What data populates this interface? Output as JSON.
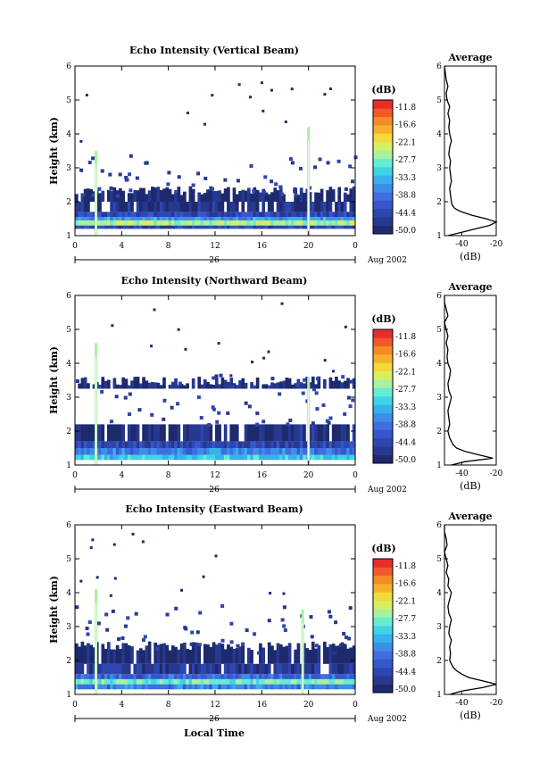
{
  "colorbar": {
    "unit": "(dB)",
    "labels": [
      "-11.8",
      "-16.6",
      "-22.1",
      "-27.7",
      "-33.3",
      "-38.8",
      "-44.4",
      "-50.0"
    ],
    "colors": [
      "#1e2a6e",
      "#27388f",
      "#2e46b0",
      "#3657cc",
      "#3f6ee0",
      "#3e8de8",
      "#38b0ec",
      "#3fd3e8",
      "#66ecd0",
      "#a7f1a0",
      "#d7ee62",
      "#f3d93a",
      "#f6b12c",
      "#f48a28",
      "#ef5a27",
      "#e82c2c"
    ]
  },
  "shared_x": {
    "ticks": [
      "0",
      "4",
      "8",
      "12",
      "16",
      "20",
      "0"
    ],
    "date_day": "26",
    "date_month": "Aug 2002",
    "xlabel": "Local Time"
  },
  "chart_data": [
    {
      "type": "heatmap",
      "title": "Echo Intensity (Vertical Beam)",
      "ylabel": "Height (km)",
      "ylim": [
        1,
        6
      ],
      "xlim": [
        0,
        24
      ],
      "y_ticks": [
        "1",
        "2",
        "3",
        "4",
        "5",
        "6"
      ],
      "value_range_db": [
        -50.0,
        -11.8
      ],
      "layers": [
        {
          "h0": 1.2,
          "h1": 1.3,
          "db": -44
        },
        {
          "h0": 1.3,
          "h1": 1.45,
          "db": -27
        },
        {
          "h0": 1.45,
          "h1": 1.55,
          "db": -36
        },
        {
          "h0": 1.55,
          "h1": 1.7,
          "db": -44
        },
        {
          "h0": 1.7,
          "h1": 2.0,
          "db": -47
        },
        {
          "h0": 2.0,
          "h1": 2.2,
          "db": -49
        }
      ],
      "spikes_h": [
        {
          "h": 1.8,
          "top": 3.5
        },
        {
          "h": 20.0,
          "top": 4.2
        }
      ],
      "average_profile": {
        "title": "Average",
        "xlabel": "(dB)",
        "x_ticks": [
          "-40",
          "-20"
        ],
        "xlim": [
          -50,
          -20
        ],
        "y_ticks": [
          "1",
          "2",
          "3",
          "4",
          "5",
          "6"
        ],
        "heights": [
          1.0,
          1.1,
          1.2,
          1.3,
          1.4,
          1.5,
          1.6,
          1.7,
          1.8,
          1.9,
          2.0,
          2.2,
          2.4,
          2.6,
          2.8,
          3.0,
          3.2,
          3.4,
          3.6,
          3.8,
          4.0,
          4.2,
          4.4,
          4.6,
          4.8,
          5.0,
          5.2,
          5.4,
          5.6,
          5.8,
          6.0
        ],
        "db": [
          -48,
          -40,
          -32,
          -24,
          -20,
          -26,
          -34,
          -40,
          -44,
          -45.5,
          -46,
          -46.5,
          -47,
          -46,
          -46.5,
          -47,
          -46.5,
          -47.5,
          -47,
          -46,
          -47,
          -47.5,
          -47,
          -48,
          -47,
          -48.5,
          -49,
          -48,
          -49,
          -49.5,
          -50
        ]
      }
    },
    {
      "type": "heatmap",
      "title": "Echo Intensity (Northward Beam)",
      "ylabel": "Height (km)",
      "ylim": [
        1,
        6
      ],
      "xlim": [
        0,
        24
      ],
      "y_ticks": [
        "1",
        "2",
        "3",
        "4",
        "5",
        "6"
      ],
      "value_range_db": [
        -50.0,
        -11.8
      ],
      "layers": [
        {
          "h0": 1.15,
          "h1": 1.3,
          "db": -33
        },
        {
          "h0": 1.3,
          "h1": 1.5,
          "db": -38
        },
        {
          "h0": 1.5,
          "h1": 1.7,
          "db": -44
        },
        {
          "h0": 1.7,
          "h1": 2.2,
          "db": -48
        },
        {
          "h0": 3.25,
          "h1": 3.35,
          "db": -48
        }
      ],
      "spikes_h": [
        {
          "h": 1.8,
          "top": 4.6
        },
        {
          "h": 20.0,
          "top": 3.6
        }
      ],
      "average_profile": {
        "title": "Average",
        "xlabel": "(dB)",
        "x_ticks": [
          "-40",
          "-20"
        ],
        "xlim": [
          -50,
          -20
        ],
        "y_ticks": [
          "1",
          "2",
          "3",
          "4",
          "5",
          "6"
        ],
        "heights": [
          1.0,
          1.1,
          1.2,
          1.3,
          1.4,
          1.5,
          1.6,
          1.7,
          1.8,
          1.9,
          2.0,
          2.2,
          2.4,
          2.6,
          2.8,
          3.0,
          3.2,
          3.4,
          3.6,
          3.8,
          4.0,
          4.2,
          4.4,
          4.6,
          4.8,
          5.0,
          5.2,
          5.4,
          5.6,
          5.8,
          6.0
        ],
        "db": [
          -46,
          -38,
          -22,
          -30,
          -38,
          -43,
          -45,
          -46,
          -47,
          -47.5,
          -48,
          -47,
          -47.5,
          -48,
          -47,
          -46,
          -47.5,
          -48,
          -47,
          -46.5,
          -48,
          -48.5,
          -48,
          -49,
          -48,
          -49,
          -50,
          -48,
          -49,
          -50,
          -50
        ]
      }
    },
    {
      "type": "heatmap",
      "title": "Echo Intensity (Eastward Beam)",
      "ylabel": "Height (km)",
      "ylim": [
        1,
        6
      ],
      "xlim": [
        0,
        24
      ],
      "y_ticks": [
        "1",
        "2",
        "3",
        "4",
        "5",
        "6"
      ],
      "value_range_db": [
        -50.0,
        -11.8
      ],
      "layers": [
        {
          "h0": 1.15,
          "h1": 1.3,
          "db": -38
        },
        {
          "h0": 1.3,
          "h1": 1.45,
          "db": -29
        },
        {
          "h0": 1.45,
          "h1": 1.6,
          "db": -40
        },
        {
          "h0": 1.6,
          "h1": 1.9,
          "db": -46
        },
        {
          "h0": 1.9,
          "h1": 2.3,
          "db": -49
        }
      ],
      "spikes_h": [
        {
          "h": 1.8,
          "top": 4.1
        },
        {
          "h": 19.5,
          "top": 3.5
        }
      ],
      "average_profile": {
        "title": "Average",
        "xlabel": "(dB)",
        "x_ticks": [
          "-40",
          "-20"
        ],
        "xlim": [
          -50,
          -20
        ],
        "y_ticks": [
          "1",
          "2",
          "3",
          "4",
          "5",
          "6"
        ],
        "heights": [
          1.0,
          1.1,
          1.2,
          1.3,
          1.4,
          1.5,
          1.6,
          1.7,
          1.8,
          1.9,
          2.0,
          2.2,
          2.4,
          2.6,
          2.8,
          3.0,
          3.2,
          3.4,
          3.6,
          3.8,
          4.0,
          4.2,
          4.4,
          4.6,
          4.8,
          5.0,
          5.2,
          5.4,
          5.6,
          5.8,
          6.0
        ],
        "db": [
          -47,
          -40,
          -28,
          -20,
          -28,
          -36,
          -40,
          -43,
          -45,
          -46,
          -47,
          -46.5,
          -47,
          -46,
          -47.5,
          -47,
          -46,
          -47.5,
          -48,
          -47,
          -46,
          -48,
          -47.5,
          -49,
          -48,
          -49,
          -50,
          -48.5,
          -49,
          -50,
          -50
        ]
      }
    }
  ]
}
